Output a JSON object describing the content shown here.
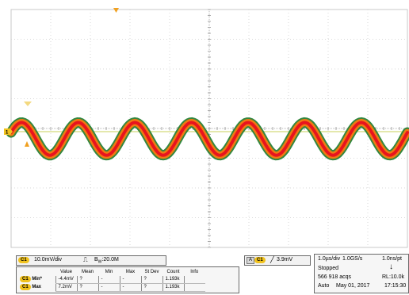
{
  "status_bar": {
    "channel_label": "C1",
    "scale": "10.0mV/div",
    "coupling_icon": "DC-coupling-icon",
    "bandwidth": "20.0M",
    "bandwidth_prefix": "B",
    "bandwidth_sub": "W",
    "trigger_label": "A",
    "trigger_channel": "C1",
    "trigger_level": "3.9mV",
    "timebase": "1.0µs/div",
    "sample_rate": "1.0GS/s",
    "point_interval": "1.0ns/pt",
    "run_state": "Stopped",
    "acquisitions": "566 918 acqs",
    "record_length": "RL:10.0k",
    "trigger_mode": "Auto",
    "date": "May 01, 2017",
    "time": "17:15:30"
  },
  "measurements": {
    "headers": [
      "Value",
      "Mean",
      "Min",
      "Max",
      "St Dev",
      "Count",
      "Info"
    ],
    "rows": [
      {
        "channel": "C1",
        "name": "Min*",
        "value": "-4.4mV",
        "mean": "?",
        "min": "-",
        "max": "-",
        "stdev": "?",
        "count": "1.193k",
        "info": ""
      },
      {
        "channel": "C1",
        "name": "Max",
        "value": "7.2mV",
        "mean": "?",
        "min": "-",
        "max": "-",
        "stdev": "?",
        "count": "1.193k",
        "info": ""
      }
    ]
  },
  "colors": {
    "grid": "#d9d9d9",
    "trace_hot": "#e8141e",
    "trace_mid": "#f07a12",
    "trace_edge": "#1d7a2a",
    "marker": "#f0c21e",
    "level_line": "#c8d25a"
  },
  "waveform": {
    "cycles": 7,
    "amplitude_divs": 0.55,
    "center_div": -0.35
  }
}
